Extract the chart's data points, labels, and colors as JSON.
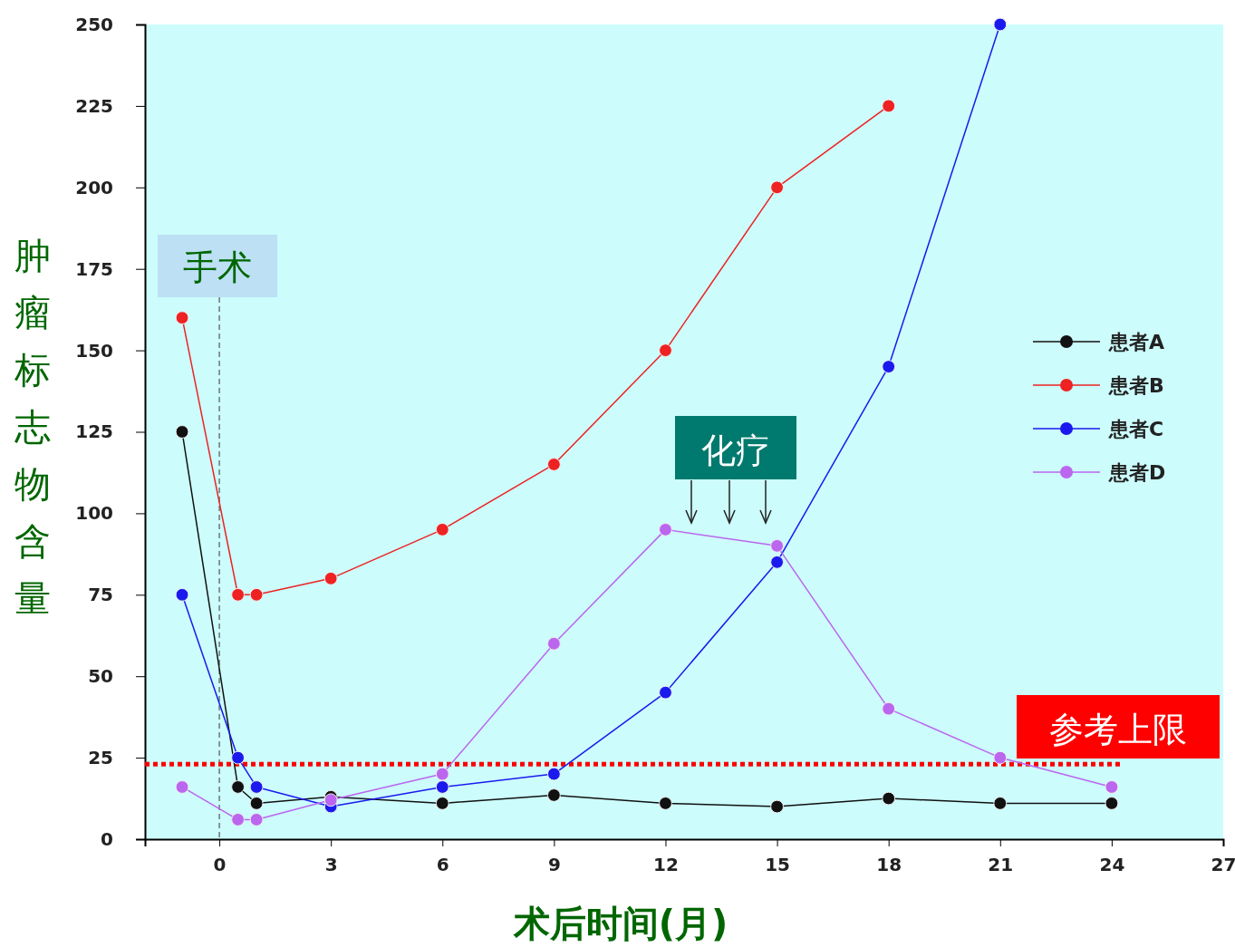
{
  "chart_data": {
    "type": "line",
    "xlabel": "术后时间(月)",
    "ylabel": "肿瘤标志物含量",
    "x": [
      -1,
      0.5,
      1,
      3,
      6,
      9,
      12,
      15,
      18,
      21,
      24
    ],
    "series": [
      {
        "name": "患者A",
        "color": "#111111",
        "values": [
          125,
          16,
          11,
          13,
          11,
          13.5,
          11,
          10,
          12.5,
          11,
          11
        ]
      },
      {
        "name": "患者B",
        "color": "#ee2222",
        "values": [
          160,
          75,
          75,
          80,
          95,
          115,
          150,
          200,
          225,
          null,
          null
        ]
      },
      {
        "name": "患者C",
        "color": "#1a1aee",
        "values": [
          75,
          25,
          16,
          10,
          16,
          20,
          45,
          85,
          145,
          250,
          null
        ]
      },
      {
        "name": "患者D",
        "color": "#bb66ee",
        "values": [
          16,
          6,
          6,
          12,
          20,
          60,
          95,
          90,
          40,
          25,
          16
        ]
      }
    ],
    "xlim": [
      -2,
      27
    ],
    "xticks": [
      0,
      3,
      6,
      9,
      12,
      15,
      18,
      21,
      24,
      27
    ],
    "ylim": [
      0,
      250
    ],
    "yticks": [
      0,
      25,
      50,
      75,
      100,
      125,
      150,
      175,
      200,
      225,
      250
    ],
    "marker": "circle",
    "legend": "right",
    "grid": false,
    "ref_lines": [
      {
        "axis": "x",
        "value": 0,
        "label": "手术",
        "color": "#555555",
        "line_style": "dashed"
      },
      {
        "axis": "y",
        "value": 23,
        "label": "参考上限",
        "color": "#ff0000",
        "line_style": "dotted"
      }
    ],
    "annotations": [
      "化疗"
    ]
  }
}
